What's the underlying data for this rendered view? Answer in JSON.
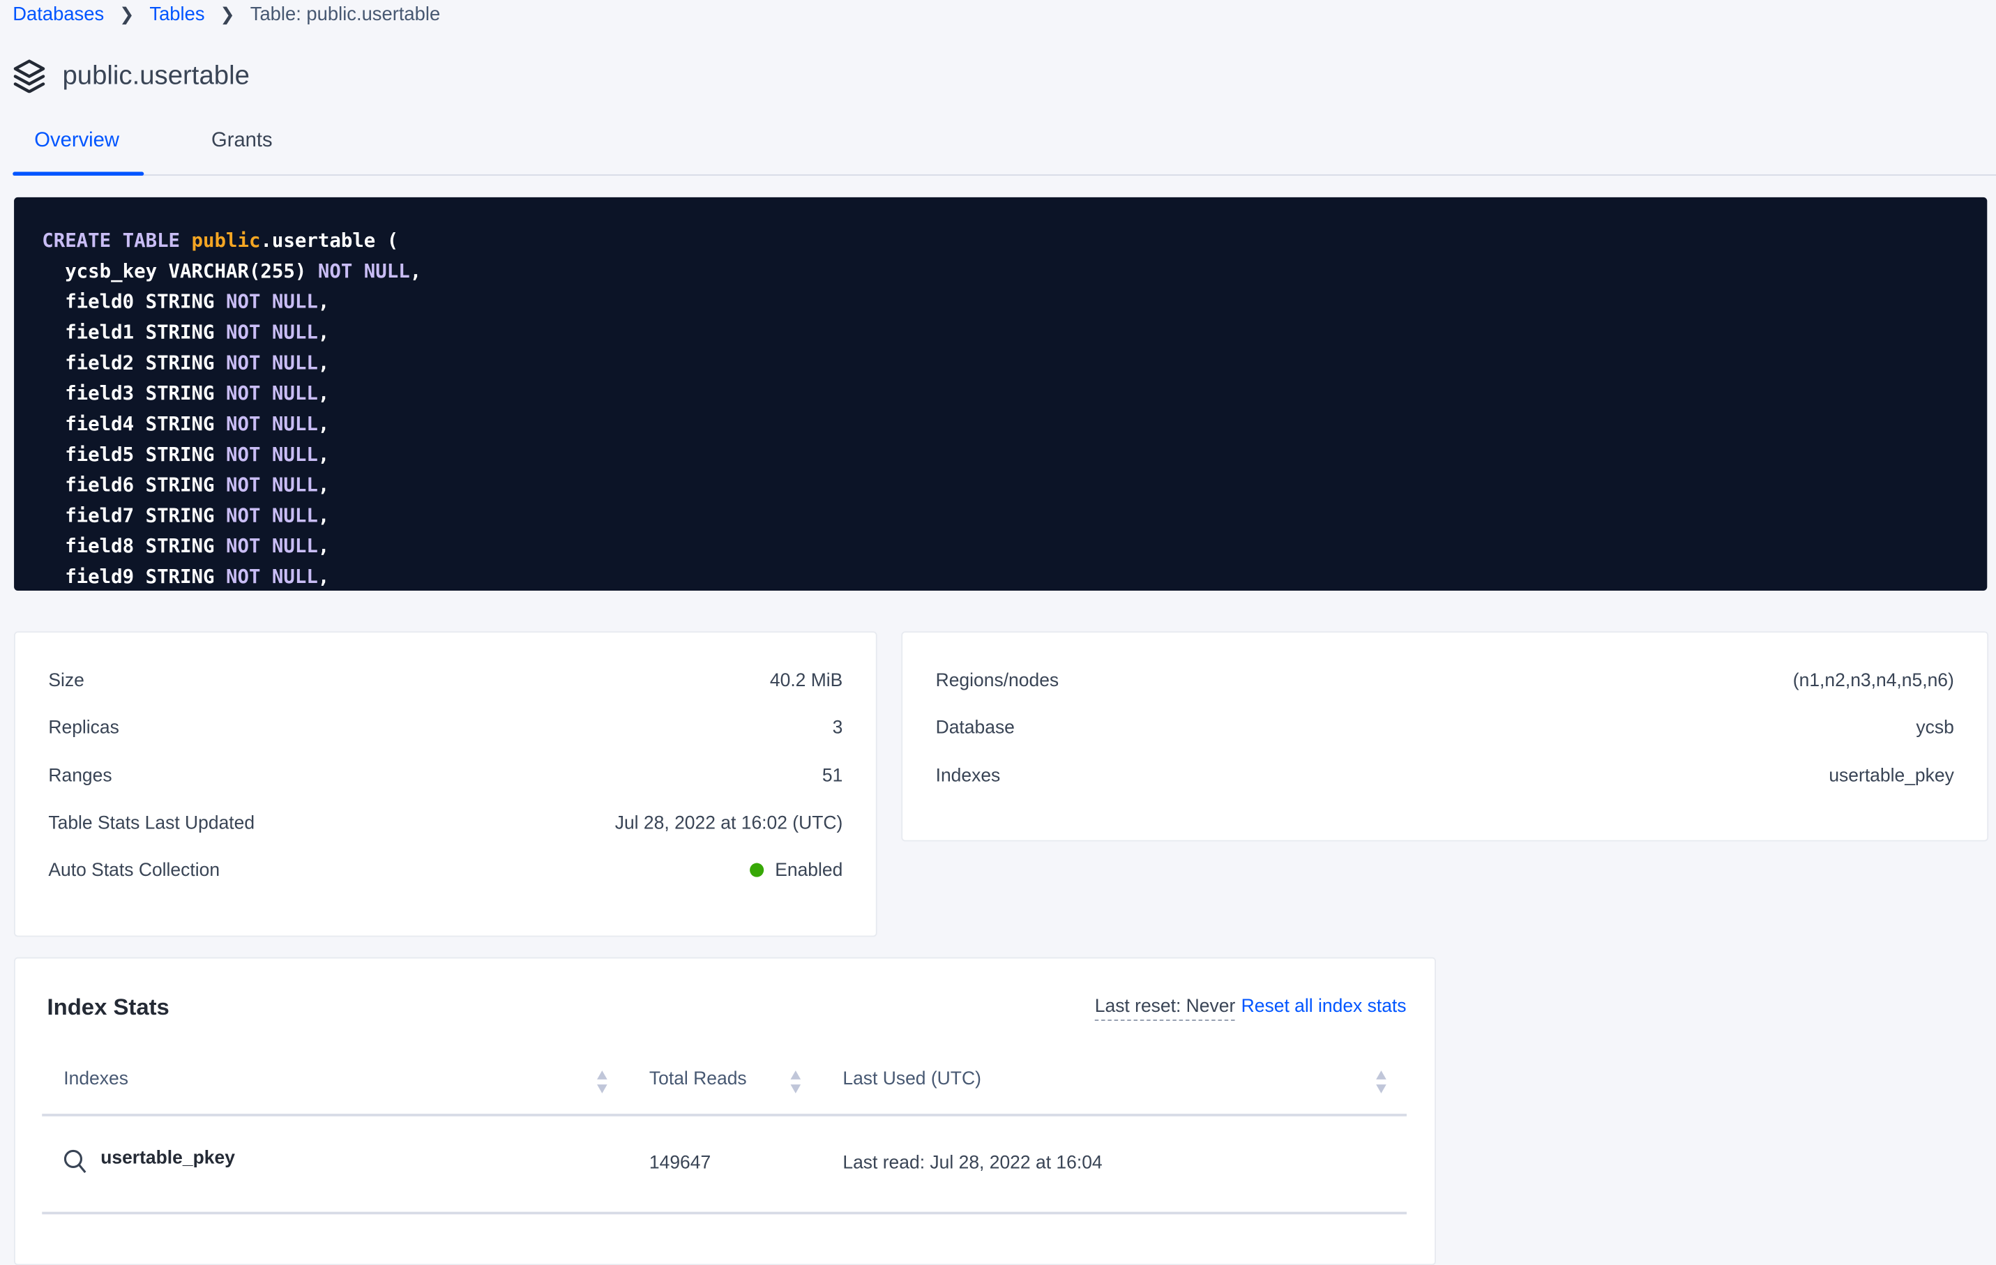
{
  "breadcrumb": {
    "items": [
      {
        "label": "Databases"
      },
      {
        "label": "Tables"
      },
      {
        "label": "Table: public.usertable"
      }
    ]
  },
  "header": {
    "title": "public.usertable",
    "icon": "stack-icon"
  },
  "tabs": [
    {
      "label": "Overview",
      "active": true
    },
    {
      "label": "Grants",
      "active": false
    }
  ],
  "code": {
    "lines": [
      [
        [
          "kw",
          "CREATE TABLE "
        ],
        [
          "sch",
          "public"
        ],
        [
          "",
          "."
        ],
        [
          "",
          "usertable ("
        ]
      ],
      [
        [
          "",
          "  ycsb_key VARCHAR(255) "
        ],
        [
          "kw",
          "NOT NULL"
        ],
        [
          "",
          ","
        ]
      ],
      [
        [
          "",
          "  field0 STRING "
        ],
        [
          "kw",
          "NOT NULL"
        ],
        [
          "",
          ","
        ]
      ],
      [
        [
          "",
          "  field1 STRING "
        ],
        [
          "kw",
          "NOT NULL"
        ],
        [
          "",
          ","
        ]
      ],
      [
        [
          "",
          "  field2 STRING "
        ],
        [
          "kw",
          "NOT NULL"
        ],
        [
          "",
          ","
        ]
      ],
      [
        [
          "",
          "  field3 STRING "
        ],
        [
          "kw",
          "NOT NULL"
        ],
        [
          "",
          ","
        ]
      ],
      [
        [
          "",
          "  field4 STRING "
        ],
        [
          "kw",
          "NOT NULL"
        ],
        [
          "",
          ","
        ]
      ],
      [
        [
          "",
          "  field5 STRING "
        ],
        [
          "kw",
          "NOT NULL"
        ],
        [
          "",
          ","
        ]
      ],
      [
        [
          "",
          "  field6 STRING "
        ],
        [
          "kw",
          "NOT NULL"
        ],
        [
          "",
          ","
        ]
      ],
      [
        [
          "",
          "  field7 STRING "
        ],
        [
          "kw",
          "NOT NULL"
        ],
        [
          "",
          ","
        ]
      ],
      [
        [
          "",
          "  field8 STRING "
        ],
        [
          "kw",
          "NOT NULL"
        ],
        [
          "",
          ","
        ]
      ],
      [
        [
          "",
          "  field9 STRING "
        ],
        [
          "kw",
          "NOT NULL"
        ],
        [
          "",
          ","
        ]
      ]
    ]
  },
  "stats": [
    {
      "label": "Size",
      "value": "40.2 MiB"
    },
    {
      "label": "Replicas",
      "value": "3"
    },
    {
      "label": "Ranges",
      "value": "51"
    },
    {
      "label": "Table Stats Last Updated",
      "value": "Jul 28, 2022 at 16:02 (UTC)"
    },
    {
      "label": "Auto Stats Collection",
      "value": "Enabled",
      "status_color": "#37a806"
    }
  ],
  "details": [
    {
      "label": "Regions/nodes",
      "value": "(n1,n2,n3,n4,n5,n6)"
    },
    {
      "label": "Database",
      "value": "ycsb"
    },
    {
      "label": "Indexes",
      "value": "usertable_pkey"
    }
  ],
  "index_stats": {
    "title": "Index Stats",
    "last_reset": "Last reset: Never",
    "reset_link": "Reset all index stats",
    "columns": [
      "Indexes",
      "Total Reads",
      "Last Used (UTC)"
    ],
    "rows": [
      {
        "index": "usertable_pkey",
        "total_reads": "149647",
        "last_used": "Last read: Jul 28, 2022 at 16:04"
      }
    ]
  },
  "colors": {
    "accent": "#0055ff",
    "code_bg": "#0c1427",
    "keyword": "#c9bdf5",
    "schema": "#f5a623"
  }
}
